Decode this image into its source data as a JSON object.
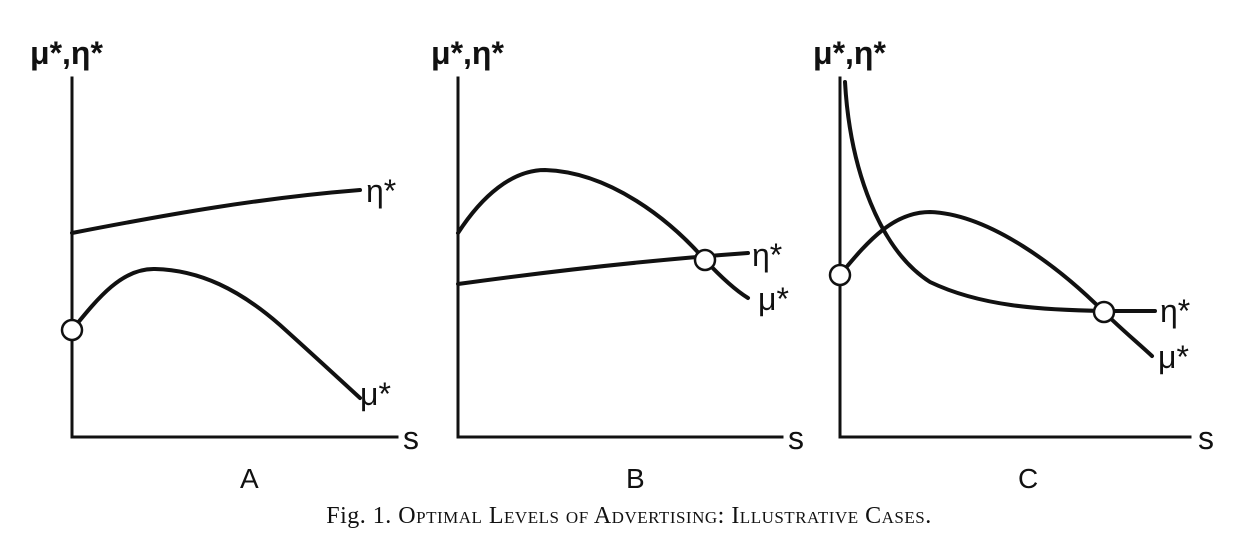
{
  "figure": {
    "caption_prefix": "Fig. 1.",
    "caption_text": "Optimal Levels of Advertising: Illustrative Cases.",
    "panels": [
      {
        "letter": "A",
        "y_axis_label": "μ*,η*",
        "x_axis_label": "s",
        "eta_label": "η*",
        "mu_label": "μ*"
      },
      {
        "letter": "B",
        "y_axis_label": "μ*,η*",
        "x_axis_label": "s",
        "eta_label": "η*",
        "mu_label": "μ*"
      },
      {
        "letter": "C",
        "y_axis_label": "μ*,η*",
        "x_axis_label": "s",
        "eta_label": "η*",
        "mu_label": "μ*"
      }
    ]
  }
}
